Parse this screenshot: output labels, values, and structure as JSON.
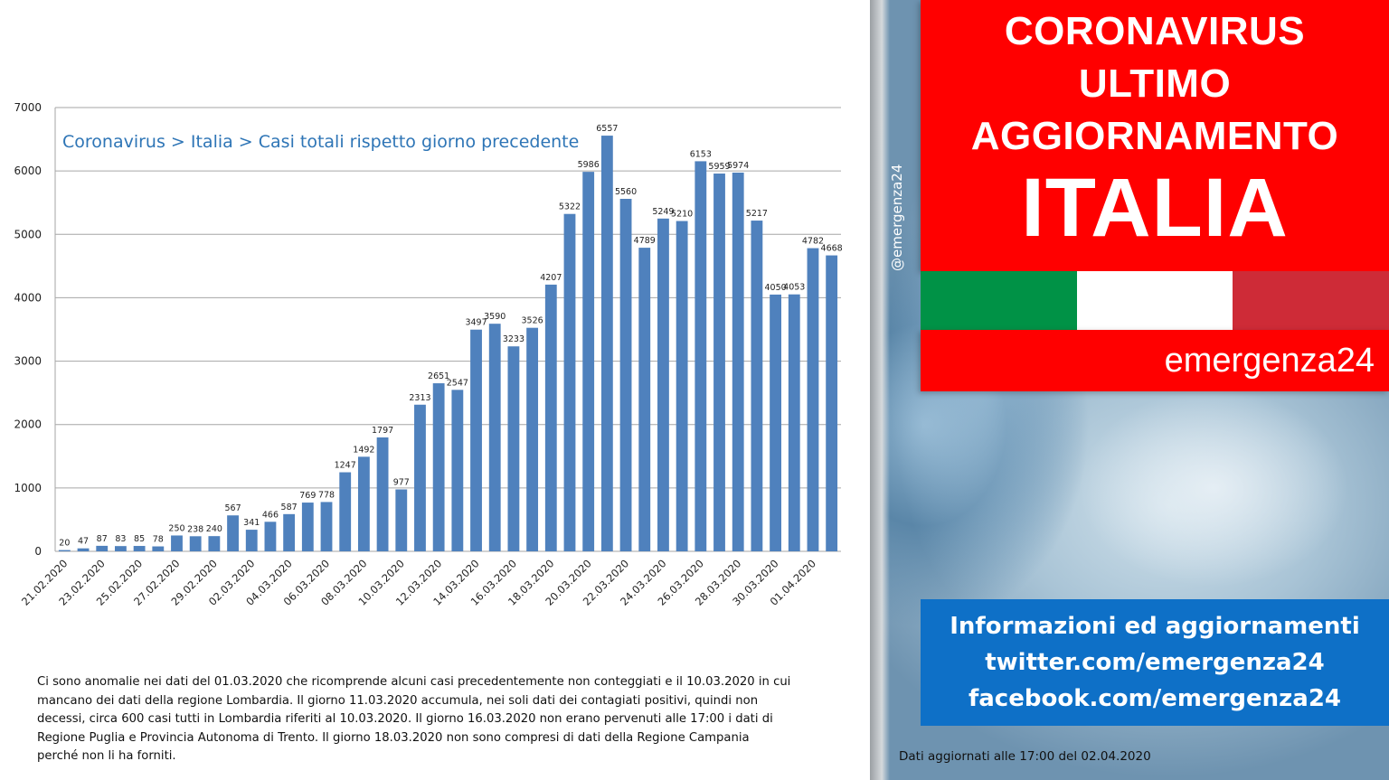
{
  "chart_data": {
    "type": "bar",
    "title": "Coronavirus > Italia > Casi totali rispetto giorno precedente",
    "xlabel": "",
    "ylabel": "",
    "ylim": [
      0,
      7000
    ],
    "yticks": [
      0,
      1000,
      2000,
      3000,
      4000,
      5000,
      6000,
      7000
    ],
    "grid": true,
    "bar_color": "#4f81bd",
    "categories": [
      "21.02.2020",
      "22.02.2020",
      "23.02.2020",
      "24.02.2020",
      "25.02.2020",
      "26.02.2020",
      "27.02.2020",
      "28.02.2020",
      "29.02.2020",
      "01.03.2020",
      "02.03.2020",
      "03.03.2020",
      "04.03.2020",
      "05.03.2020",
      "06.03.2020",
      "07.03.2020",
      "08.03.2020",
      "09.03.2020",
      "10.03.2020",
      "11.03.2020",
      "12.03.2020",
      "13.03.2020",
      "14.03.2020",
      "15.03.2020",
      "16.03.2020",
      "17.03.2020",
      "18.03.2020",
      "19.03.2020",
      "20.03.2020",
      "21.03.2020",
      "22.03.2020",
      "23.03.2020",
      "24.03.2020",
      "25.03.2020",
      "26.03.2020",
      "27.03.2020",
      "28.03.2020",
      "29.03.2020",
      "30.03.2020",
      "31.03.2020",
      "01.04.2020",
      "02.04.2020"
    ],
    "x_tick_labels": [
      "21.02.2020",
      "23.02.2020",
      "25.02.2020",
      "27.02.2020",
      "29.02.2020",
      "02.03.2020",
      "04.03.2020",
      "06.03.2020",
      "08.03.2020",
      "10.03.2020",
      "12.03.2020",
      "14.03.2020",
      "16.03.2020",
      "18.03.2020",
      "20.03.2020",
      "22.03.2020",
      "24.03.2020",
      "26.03.2020",
      "28.03.2020",
      "30.03.2020",
      "01.04.2020"
    ],
    "values": [
      20,
      47,
      87,
      83,
      85,
      78,
      250,
      238,
      240,
      567,
      341,
      466,
      587,
      769,
      778,
      1247,
      1492,
      1797,
      977,
      2313,
      2651,
      2547,
      3497,
      3590,
      3233,
      3526,
      4207,
      5322,
      5986,
      6557,
      5560,
      4789,
      5249,
      5210,
      6153,
      5959,
      5974,
      5217,
      4050,
      4053,
      4782,
      4668
    ]
  },
  "footnote": [
    "Ci sono anomalie nei dati del 01.03.2020 che ricomprende alcuni casi precedentemente  non conteggiati e il 10.03.2020 in cui",
    "mancano dei dati della regione Lombardia. Il giorno 11.03.2020  accumula, nei soli dati dei contagiati positivi, quindi non",
    "decessi, circa 600 casi tutti in Lombardia riferiti al 10.03.2020. Il giorno 16.03.2020 non erano pervenuti alle  17:00 i dati di",
    "Regione Puglia e  Provincia Autonoma di Trento. Il giorno 18.03.2020 non sono compresi di dati della Regione  Campania",
    "perché non li ha forniti."
  ],
  "header": {
    "line1": "CORONAVIRUS",
    "line2": "ULTIMO",
    "line3": "AGGIORNAMENTO",
    "big": "ITALIA"
  },
  "flag_colors": [
    "#009246",
    "#ffffff",
    "#ce2b37"
  ],
  "brand": "emergenza24",
  "watermark": "@emergenza24",
  "info": {
    "line1": "Informazioni ed aggiornamenti",
    "line2": "twitter.com/emergenza24",
    "line3": "facebook.com/emergenza24"
  },
  "updated": "Dati aggiornati alle  17:00 del 02.04.2020"
}
